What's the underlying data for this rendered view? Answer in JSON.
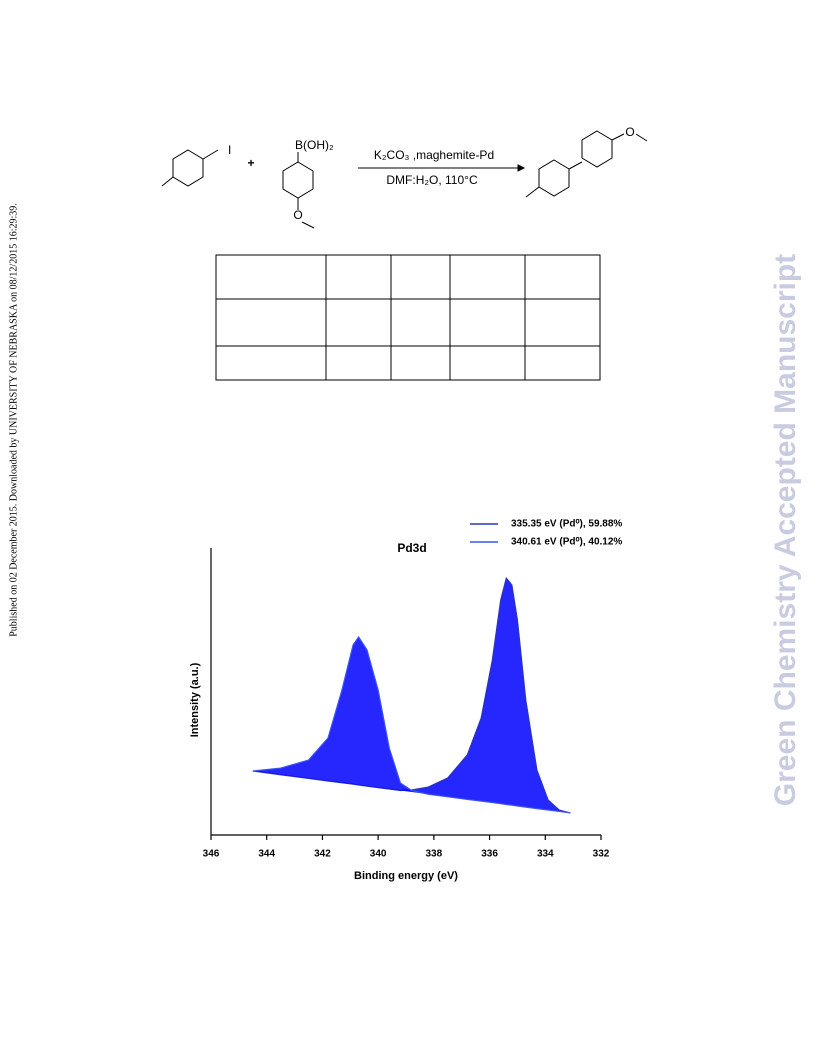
{
  "side_note": "Published on 02 December 2015. Downloaded by UNIVERSITY OF NEBRASKA on 08/12/2015 16:29:39.",
  "watermark": "Green Chemistry Accepted Manuscript",
  "scheme": {
    "iodide": "I",
    "plus": "+",
    "boronic": "B(OH)₂",
    "oxygen": "O",
    "reagents": "K₂CO₃ ,maghemite-Pd",
    "conditions": "DMF:H₂O, 110°C"
  },
  "chart_data": {
    "type": "area",
    "title": "Pd3d",
    "x_label": "Binding energy (eV)",
    "y_label": "Intensity (a.u.)",
    "x": [
      344.5,
      343.5,
      342.5,
      341.8,
      341.3,
      340.9,
      340.7,
      340.4,
      340,
      339.6,
      339.2,
      338.8,
      338.2,
      337.5,
      336.8,
      336.3,
      335.9,
      335.6,
      335.4,
      335.2,
      335.0,
      334.7,
      334.3,
      333.9,
      333.5,
      333.1
    ],
    "series": [
      {
        "name": "335.35 eV (Pd⁰), 59.88%",
        "color": "#2a36b8",
        "values": [
          22.3,
          21.0,
          19.7,
          18.8,
          18.2,
          17.7,
          17.4,
          17.0,
          16.5,
          16.0,
          15.5,
          15.7,
          16.7,
          19.9,
          27.9,
          40.8,
          61.0,
          81.9,
          89.5,
          87.1,
          74.9,
          47.0,
          22.6,
          12.2,
          8.7,
          7.7
        ]
      },
      {
        "name": "340.61 eV (Pd⁰), 40.12%",
        "color": "#3a55f0",
        "values": [
          22.3,
          23.3,
          26.1,
          33.8,
          50.5,
          66.2,
          69.0,
          64.5,
          50.5,
          30.3,
          18.1,
          15.5,
          14.2,
          13.3,
          12.4,
          11.8,
          11.3,
          10.9,
          10.6,
          10.4,
          10.1,
          9.7,
          9.2,
          8.7,
          8.2,
          7.7
        ]
      }
    ],
    "fill": "#0000ff",
    "xlim": [
      346,
      332
    ],
    "xticks": [
      346,
      344,
      342,
      340,
      338,
      336,
      334,
      332
    ],
    "ylim": [
      0,
      100
    ],
    "legend": "top-right"
  }
}
